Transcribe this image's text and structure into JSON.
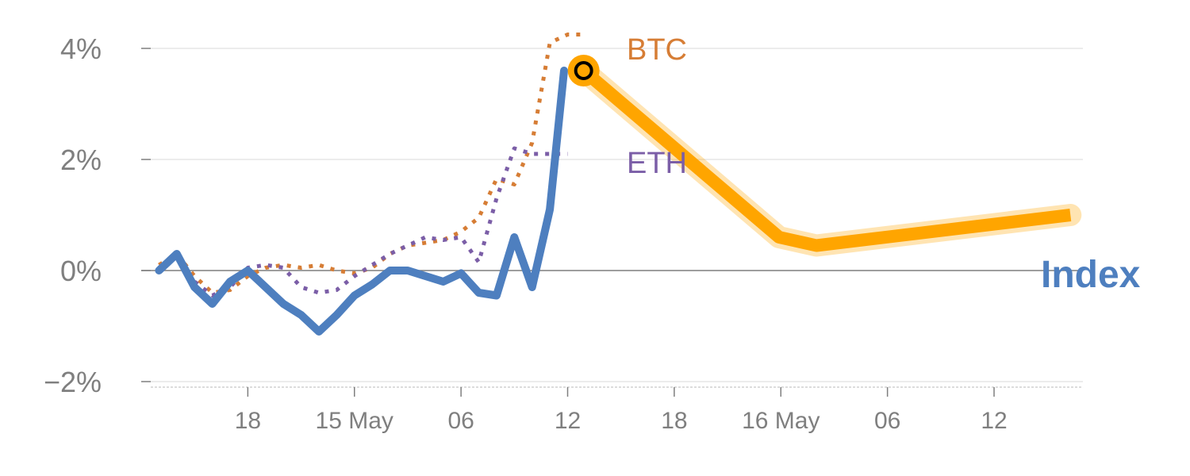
{
  "chart_data": {
    "type": "line",
    "x_unit": "hours",
    "xlim": [
      -7,
      46
    ],
    "ylim": [
      -2.1,
      4.3
    ],
    "y_ticks": [
      {
        "value": -2,
        "label": "−2%"
      },
      {
        "value": 0,
        "label": "0%"
      },
      {
        "value": 2,
        "label": "2%"
      },
      {
        "value": 4,
        "label": "4%"
      }
    ],
    "x_ticks": [
      {
        "value": -1,
        "label": "18"
      },
      {
        "value": 5,
        "label": "15 May"
      },
      {
        "value": 11,
        "label": "06"
      },
      {
        "value": 17,
        "label": "12"
      },
      {
        "value": 23,
        "label": "18"
      },
      {
        "value": 29,
        "label": "16 May"
      },
      {
        "value": 35,
        "label": "06"
      },
      {
        "value": 41,
        "label": "12"
      }
    ],
    "grid": true,
    "zero_line": true,
    "series": [
      {
        "name": "BTC",
        "color": "#d67d35",
        "style": "dotted",
        "x": [
          -6,
          -5,
          -4,
          -3,
          -2,
          -1,
          0,
          1,
          2,
          3,
          4,
          5,
          6,
          7,
          8,
          9,
          10,
          11,
          12,
          13,
          14,
          15,
          16,
          17,
          18
        ],
        "y": [
          0.1,
          0.3,
          -0.1,
          -0.4,
          -0.35,
          -0.1,
          0.05,
          0.1,
          0.05,
          0.1,
          0.0,
          -0.05,
          0.05,
          0.3,
          0.45,
          0.5,
          0.55,
          0.7,
          0.95,
          1.65,
          1.55,
          2.3,
          4.1,
          4.25,
          4.25
        ]
      },
      {
        "name": "ETH",
        "color": "#7b5ea7",
        "style": "dotted",
        "x": [
          -6,
          -5,
          -4,
          -3,
          -2,
          -1,
          0,
          1,
          2,
          3,
          4,
          5,
          6,
          7,
          8,
          9,
          10,
          11,
          12,
          13,
          14,
          15,
          16,
          17
        ],
        "y": [
          0.05,
          0.3,
          -0.2,
          -0.45,
          -0.3,
          0.05,
          0.1,
          0.05,
          -0.3,
          -0.4,
          -0.35,
          -0.1,
          0.1,
          0.3,
          0.45,
          0.6,
          0.55,
          0.6,
          0.15,
          1.3,
          2.2,
          2.1,
          2.1,
          2.1
        ]
      },
      {
        "name": "Index",
        "color": "#4e7fbf",
        "style": "solid",
        "x": [
          -6,
          -5,
          -4,
          -3,
          -2,
          -1,
          0,
          1,
          2,
          3,
          4,
          5,
          6,
          7,
          8,
          9,
          10,
          11,
          12,
          13,
          14,
          15,
          16,
          16.8
        ],
        "y": [
          0.0,
          0.3,
          -0.3,
          -0.6,
          -0.2,
          0.0,
          -0.3,
          -0.6,
          -0.8,
          -1.1,
          -0.8,
          -0.45,
          -0.25,
          0.0,
          0.0,
          -0.1,
          -0.2,
          -0.05,
          -0.4,
          -0.45,
          0.6,
          -0.3,
          1.1,
          3.6
        ]
      }
    ],
    "forecast": {
      "name": "Index",
      "color": "#ffa500",
      "x": [
        17.9,
        28.9,
        31,
        45.3
      ],
      "y": [
        3.6,
        0.6,
        0.45,
        1.0
      ]
    },
    "marker": {
      "x": 17.9,
      "y": 3.6
    }
  }
}
